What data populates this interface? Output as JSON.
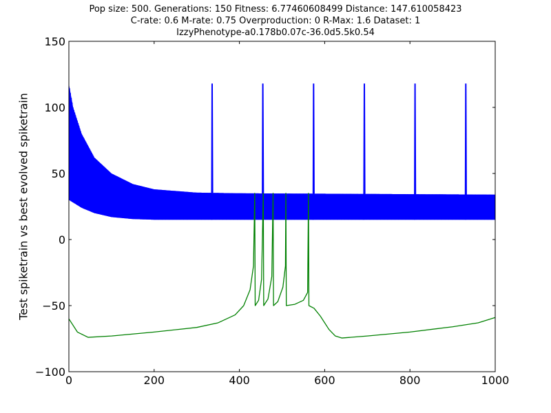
{
  "chart_data": {
    "type": "line",
    "title_lines": [
      "Pop size: 500. Generations: 150 Fitness: 6.77460608499 Distance: 147.610058423",
      "C-rate: 0.6 M-rate: 0.75 Overproduction: 0 R-Max: 1.6 Dataset: 1",
      "IzzyPhenotype-a0.178b0.07c-36.0d5.5k0.54"
    ],
    "xlabel": "",
    "ylabel": "Test spiketrain vs best evolved spiketrain",
    "xlim": [
      0,
      1000
    ],
    "ylim": [
      -100,
      150
    ],
    "xticks": [
      "0",
      "200",
      "400",
      "600",
      "800",
      "1000"
    ],
    "yticks": [
      "150",
      "100",
      "50",
      "0",
      "−50",
      "−100"
    ],
    "grid": false,
    "series": [
      {
        "color": "#0000ff",
        "description_points": "dense oscillation band",
        "band_upper": [
          [
            0,
            118
          ],
          [
            10,
            100
          ],
          [
            30,
            80
          ],
          [
            60,
            62
          ],
          [
            100,
            50
          ],
          [
            150,
            42
          ],
          [
            200,
            38
          ],
          [
            300,
            35.5
          ],
          [
            400,
            35
          ],
          [
            1000,
            34
          ]
        ],
        "band_lower": [
          [
            0,
            30
          ],
          [
            10,
            28
          ],
          [
            30,
            24
          ],
          [
            60,
            20
          ],
          [
            100,
            17
          ],
          [
            150,
            15.5
          ],
          [
            200,
            15
          ],
          [
            1000,
            15
          ]
        ],
        "spikes_x": [
          336,
          455,
          574,
          693,
          812,
          931
        ],
        "spike_peak": 118
      },
      {
        "color": "#008000",
        "points": [
          [
            0,
            -60
          ],
          [
            20,
            -70
          ],
          [
            45,
            -74
          ],
          [
            100,
            -73
          ],
          [
            200,
            -70
          ],
          [
            300,
            -66.5
          ],
          [
            350,
            -63
          ],
          [
            390,
            -57
          ],
          [
            410,
            -50
          ],
          [
            425,
            -38
          ],
          [
            433,
            -20
          ],
          [
            436,
            35
          ],
          [
            437,
            -50
          ],
          [
            445,
            -46
          ],
          [
            452,
            -30
          ],
          [
            456,
            35
          ],
          [
            457,
            -50
          ],
          [
            467,
            -45
          ],
          [
            476,
            -28
          ],
          [
            479,
            35
          ],
          [
            480,
            -50
          ],
          [
            490,
            -47
          ],
          [
            502,
            -36
          ],
          [
            508,
            -20
          ],
          [
            509,
            35
          ],
          [
            510,
            -50
          ],
          [
            530,
            -49
          ],
          [
            550,
            -46
          ],
          [
            560,
            -40
          ],
          [
            562,
            35
          ],
          [
            563,
            -50
          ],
          [
            575,
            -52
          ],
          [
            590,
            -58
          ],
          [
            610,
            -68
          ],
          [
            625,
            -73
          ],
          [
            640,
            -74.5
          ],
          [
            700,
            -73
          ],
          [
            800,
            -70
          ],
          [
            900,
            -66
          ],
          [
            960,
            -63
          ],
          [
            1000,
            -59
          ]
        ]
      }
    ]
  }
}
